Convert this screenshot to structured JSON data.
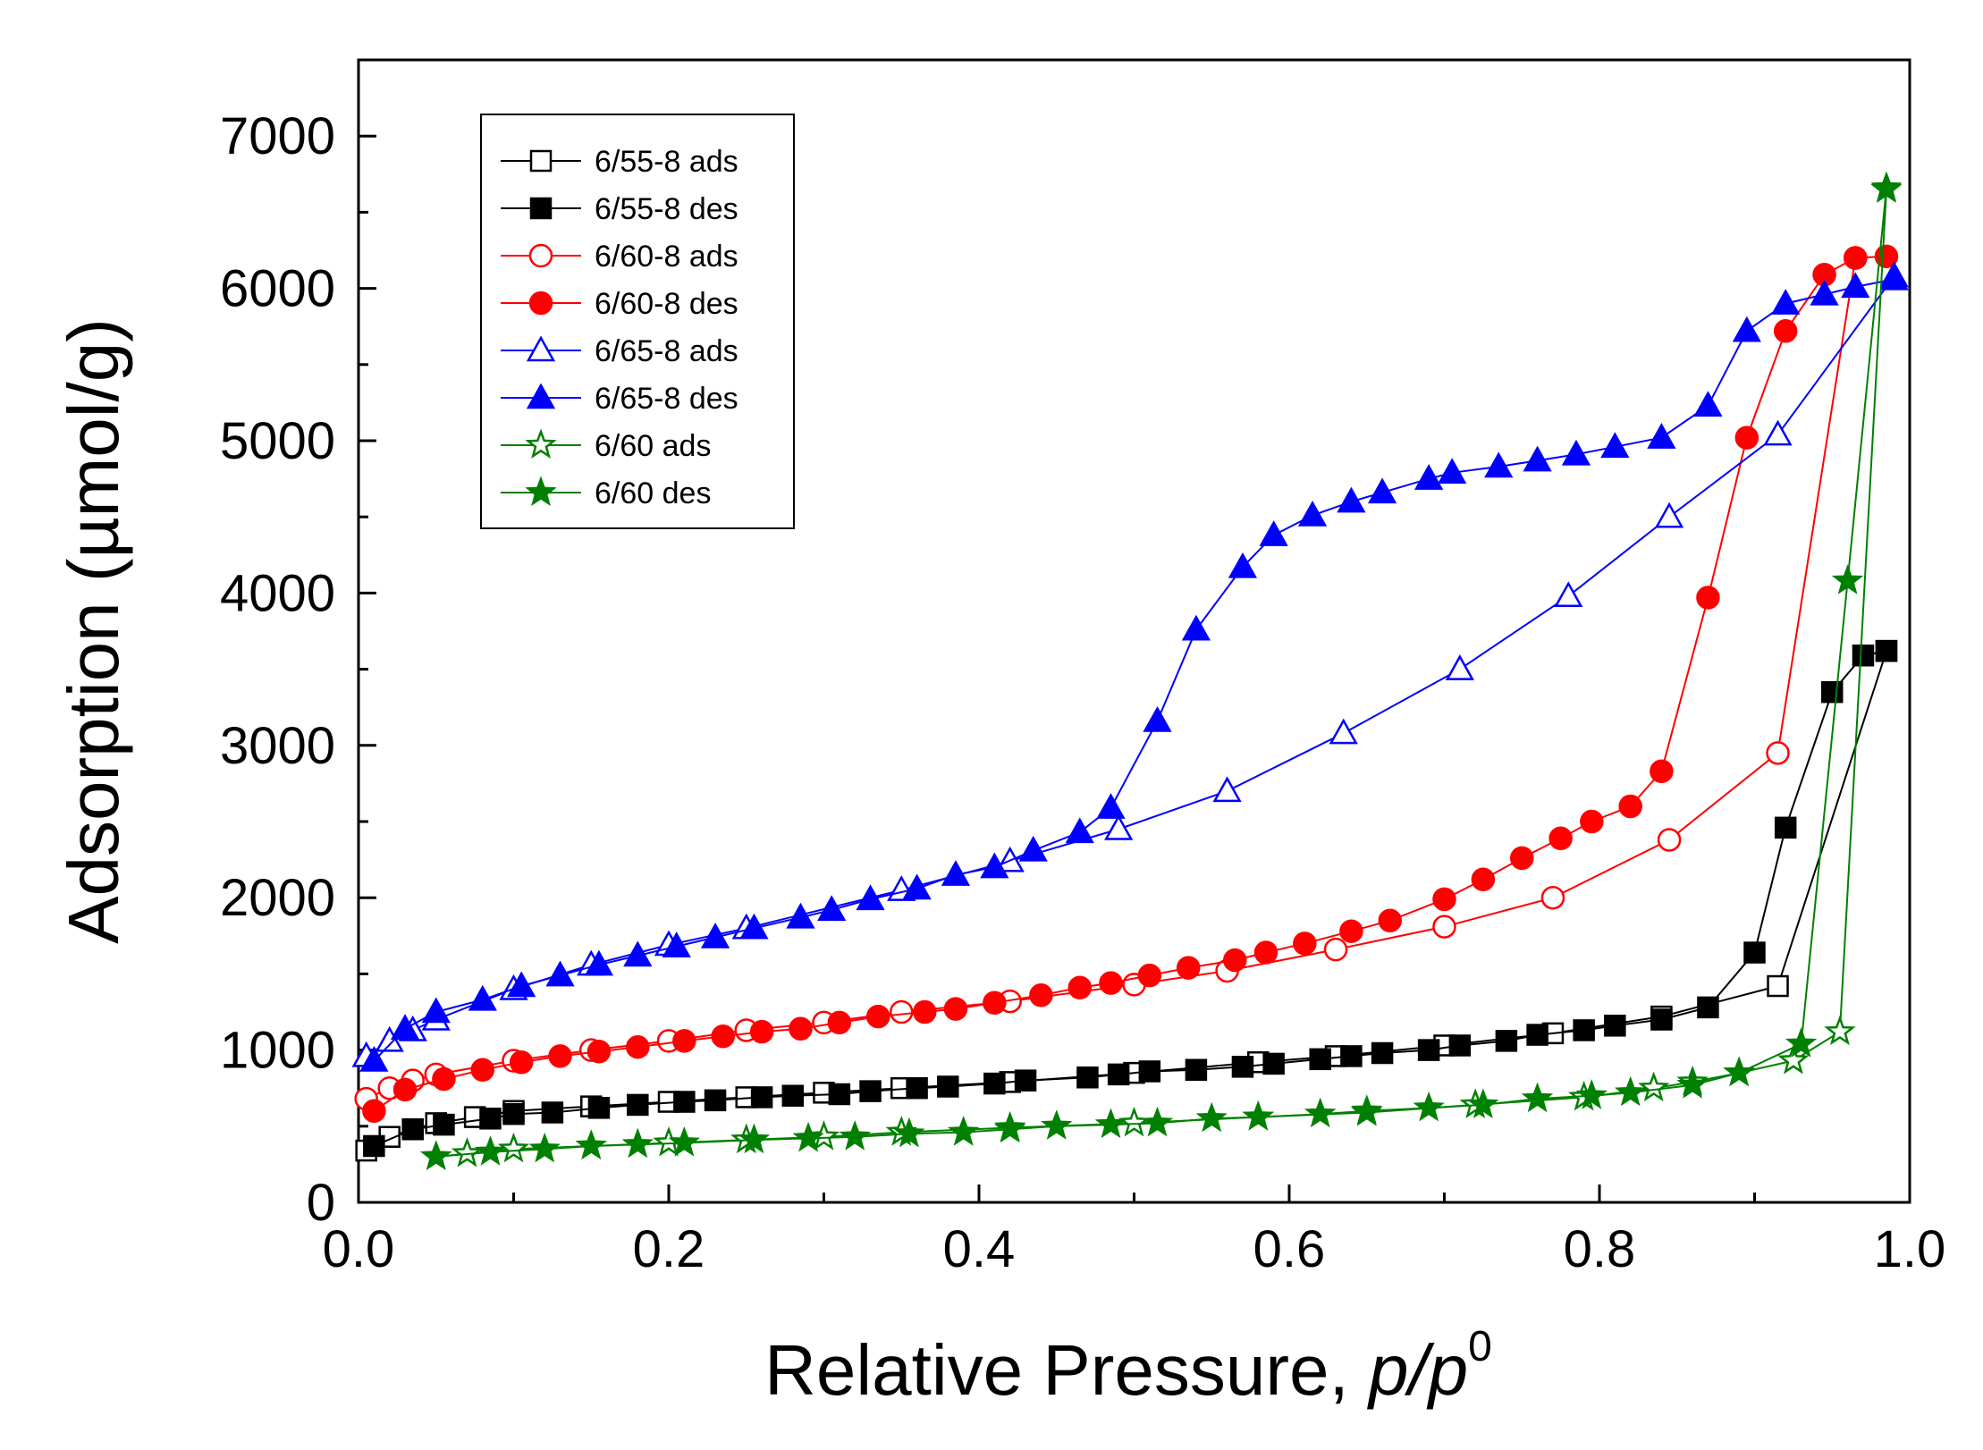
{
  "chart_data": {
    "type": "scatter",
    "title": "",
    "xlabel": "Relative Pressure, ",
    "xlabel_italic": "p/p",
    "xlabel_sup": "0",
    "ylabel": "Adsorption (µmol/g)",
    "xlim": [
      0.0,
      1.0
    ],
    "ylim": [
      0,
      7500
    ],
    "x_ticks": [
      0.0,
      0.2,
      0.4,
      0.6,
      0.8,
      1.0
    ],
    "x_tick_labels": [
      "0.0",
      "0.2",
      "0.4",
      "0.6",
      "0.8",
      "1.0"
    ],
    "y_ticks": [
      0,
      1000,
      2000,
      3000,
      4000,
      5000,
      6000,
      7000
    ],
    "y_tick_labels": [
      "0",
      "1000",
      "2000",
      "3000",
      "4000",
      "5000",
      "6000",
      "7000"
    ],
    "legend_position": "top-left",
    "grid": false,
    "series": [
      {
        "name": "6/55-8 ads",
        "color": "#000000",
        "marker": "square",
        "filled": false,
        "x": [
          0.005,
          0.02,
          0.035,
          0.05,
          0.075,
          0.1,
          0.15,
          0.2,
          0.25,
          0.3,
          0.35,
          0.42,
          0.5,
          0.58,
          0.63,
          0.7,
          0.77,
          0.84,
          0.915,
          0.985
        ],
        "y": [
          340,
          430,
          480,
          520,
          560,
          600,
          630,
          660,
          690,
          720,
          750,
          790,
          850,
          920,
          960,
          1030,
          1110,
          1220,
          1420,
          3620
        ]
      },
      {
        "name": "6/55-8 des",
        "color": "#000000",
        "marker": "square",
        "filled": true,
        "x": [
          0.985,
          0.97,
          0.95,
          0.92,
          0.9,
          0.87,
          0.84,
          0.81,
          0.79,
          0.76,
          0.74,
          0.71,
          0.69,
          0.66,
          0.64,
          0.62,
          0.59,
          0.57,
          0.54,
          0.51,
          0.49,
          0.47,
          0.43,
          0.41,
          0.38,
          0.36,
          0.33,
          0.31,
          0.28,
          0.26,
          0.23,
          0.21,
          0.18,
          0.155,
          0.125,
          0.1,
          0.085,
          0.055,
          0.035,
          0.01
        ],
        "y": [
          3620,
          3590,
          3350,
          2460,
          1640,
          1280,
          1200,
          1160,
          1130,
          1100,
          1060,
          1030,
          1000,
          980,
          960,
          940,
          910,
          890,
          870,
          860,
          840,
          820,
          800,
          780,
          760,
          750,
          730,
          710,
          700,
          690,
          670,
          660,
          640,
          620,
          590,
          580,
          550,
          510,
          480,
          370
        ]
      },
      {
        "name": "6/60-8 ads",
        "color": "#ff0000",
        "marker": "circle",
        "filled": false,
        "x": [
          0.005,
          0.02,
          0.035,
          0.05,
          0.1,
          0.15,
          0.2,
          0.25,
          0.3,
          0.35,
          0.42,
          0.5,
          0.56,
          0.63,
          0.7,
          0.77,
          0.845,
          0.915,
          0.965
        ],
        "y": [
          680,
          750,
          800,
          840,
          930,
          1000,
          1060,
          1130,
          1180,
          1250,
          1320,
          1430,
          1520,
          1660,
          1810,
          2000,
          2380,
          2950,
          6200
        ]
      },
      {
        "name": "6/60-8 des",
        "color": "#ff0000",
        "marker": "circle",
        "filled": true,
        "x": [
          0.985,
          0.965,
          0.945,
          0.92,
          0.895,
          0.87,
          0.84,
          0.82,
          0.795,
          0.775,
          0.75,
          0.725,
          0.7,
          0.665,
          0.64,
          0.61,
          0.585,
          0.565,
          0.535,
          0.51,
          0.485,
          0.465,
          0.44,
          0.41,
          0.385,
          0.365,
          0.335,
          0.31,
          0.285,
          0.26,
          0.235,
          0.21,
          0.18,
          0.155,
          0.13,
          0.105,
          0.08,
          0.055,
          0.03,
          0.01
        ],
        "y": [
          6210,
          6200,
          6090,
          5720,
          5020,
          3970,
          2830,
          2600,
          2500,
          2390,
          2260,
          2120,
          1990,
          1850,
          1780,
          1700,
          1640,
          1590,
          1540,
          1490,
          1440,
          1410,
          1360,
          1310,
          1270,
          1250,
          1220,
          1180,
          1140,
          1120,
          1090,
          1060,
          1020,
          990,
          960,
          920,
          870,
          810,
          740,
          600
        ]
      },
      {
        "name": "6/65-8 ads",
        "color": "#0000ff",
        "marker": "triangle",
        "filled": false,
        "x": [
          0.005,
          0.02,
          0.035,
          0.05,
          0.1,
          0.15,
          0.2,
          0.25,
          0.35,
          0.42,
          0.49,
          0.56,
          0.635,
          0.71,
          0.78,
          0.845,
          0.915,
          0.99
        ],
        "y": [
          960,
          1060,
          1130,
          1200,
          1400,
          1560,
          1690,
          1800,
          2050,
          2240,
          2450,
          2700,
          3080,
          3500,
          3980,
          4500,
          5040,
          6080
        ]
      },
      {
        "name": "6/65-8 des",
        "color": "#0000ff",
        "marker": "triangle",
        "filled": true,
        "x": [
          0.99,
          0.965,
          0.945,
          0.92,
          0.895,
          0.87,
          0.84,
          0.81,
          0.785,
          0.76,
          0.735,
          0.705,
          0.69,
          0.66,
          0.64,
          0.615,
          0.59,
          0.57,
          0.54,
          0.515,
          0.485,
          0.465,
          0.435,
          0.41,
          0.385,
          0.36,
          0.33,
          0.305,
          0.285,
          0.255,
          0.23,
          0.205,
          0.18,
          0.155,
          0.13,
          0.105,
          0.08,
          0.05,
          0.03,
          0.01
        ],
        "y": [
          6060,
          6010,
          5960,
          5900,
          5720,
          5230,
          5020,
          4960,
          4910,
          4870,
          4830,
          4790,
          4750,
          4660,
          4600,
          4510,
          4380,
          4170,
          3760,
          3160,
          2590,
          2430,
          2310,
          2200,
          2150,
          2060,
          1990,
          1920,
          1870,
          1800,
          1740,
          1680,
          1620,
          1560,
          1490,
          1420,
          1330,
          1250,
          1140,
          930
        ]
      },
      {
        "name": "6/60 ads",
        "color": "#008000",
        "marker": "star",
        "filled": false,
        "x": [
          0.05,
          0.07,
          0.1,
          0.15,
          0.2,
          0.25,
          0.3,
          0.35,
          0.42,
          0.5,
          0.58,
          0.65,
          0.72,
          0.79,
          0.835,
          0.86,
          0.89,
          0.925,
          0.955,
          0.985
        ],
        "y": [
          300,
          320,
          350,
          370,
          390,
          410,
          430,
          460,
          490,
          520,
          560,
          590,
          640,
          690,
          750,
          790,
          850,
          930,
          1120,
          6650
        ]
      },
      {
        "name": "6/60 des",
        "color": "#008000",
        "marker": "star",
        "filled": true,
        "x": [
          0.985,
          0.96,
          0.93,
          0.89,
          0.86,
          0.82,
          0.795,
          0.76,
          0.725,
          0.69,
          0.65,
          0.62,
          0.58,
          0.55,
          0.515,
          0.485,
          0.45,
          0.42,
          0.39,
          0.355,
          0.32,
          0.29,
          0.255,
          0.21,
          0.18,
          0.15,
          0.12,
          0.085,
          0.05
        ],
        "y": [
          6660,
          4080,
          1040,
          850,
          770,
          720,
          700,
          680,
          640,
          620,
          600,
          580,
          560,
          550,
          520,
          510,
          500,
          480,
          460,
          450,
          430,
          420,
          410,
          390,
          380,
          370,
          350,
          330,
          300
        ]
      }
    ]
  }
}
